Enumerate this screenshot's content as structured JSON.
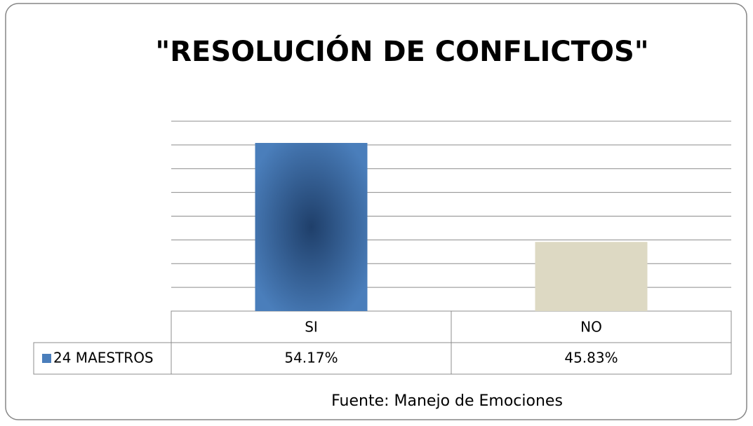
{
  "chart_data": {
    "type": "bar",
    "title": "\"RESOLUCIÓN DE CONFLICTOS\"",
    "categories": [
      "SI",
      "NO"
    ],
    "series": [
      {
        "name": "24 MAESTROS",
        "colors": [
          "#4a7ebb",
          "#ddd9c3"
        ],
        "values": [
          54.17,
          45.83
        ],
        "value_labels": [
          "54.17%",
          "45.83%"
        ]
      }
    ],
    "ylim": [
      40,
      56
    ],
    "yticks": [
      40,
      42,
      44,
      46,
      48,
      50,
      52,
      54,
      56
    ],
    "grid": true,
    "source": "Fuente: Manejo de Emociones"
  }
}
